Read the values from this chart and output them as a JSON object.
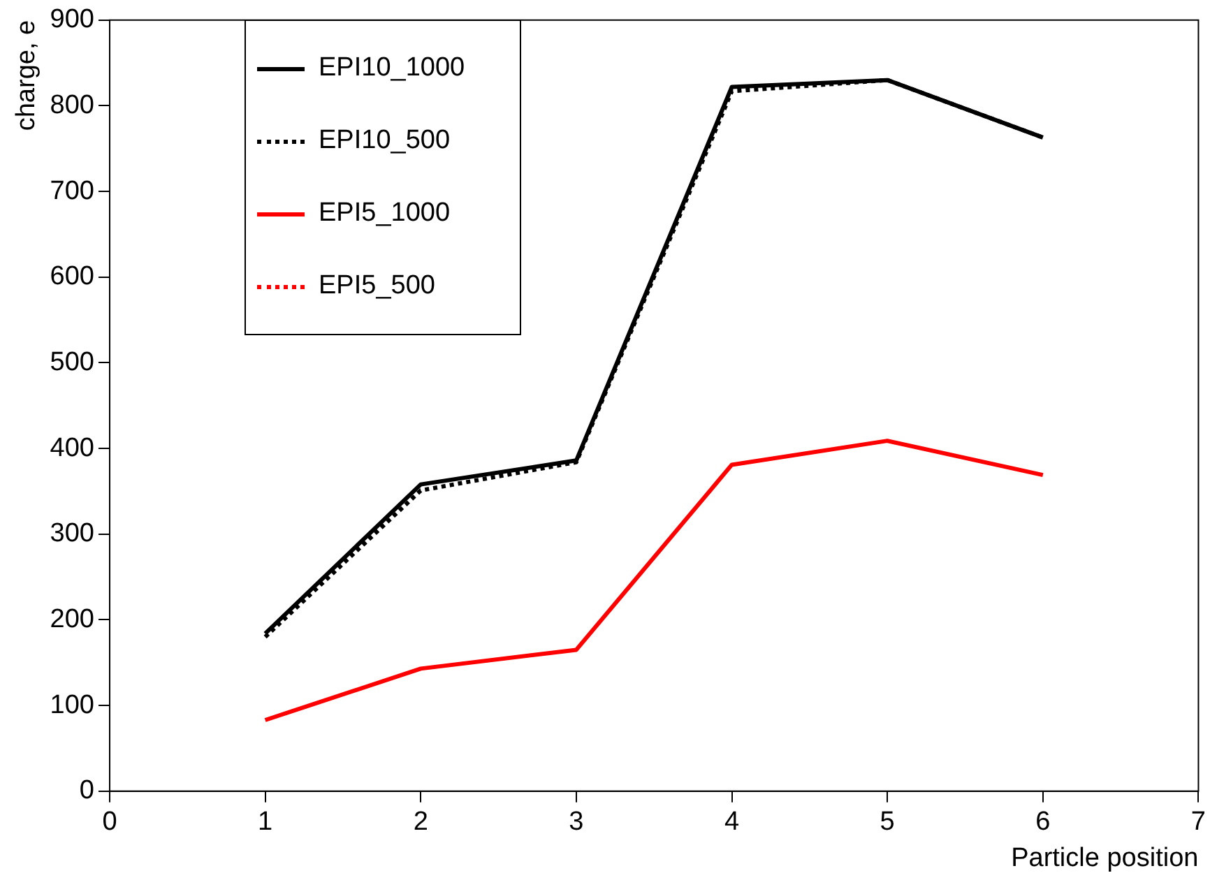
{
  "chart_data": {
    "type": "line",
    "xlabel": "Particle position",
    "ylabel": "charge, e",
    "x": [
      1,
      2,
      3,
      4,
      5,
      6
    ],
    "xlim": [
      0,
      7
    ],
    "xticks": [
      0,
      1,
      2,
      3,
      4,
      5,
      6,
      7
    ],
    "ylim": [
      0,
      900
    ],
    "yticks": [
      0,
      100,
      200,
      300,
      400,
      500,
      600,
      700,
      800,
      900
    ],
    "grid": false,
    "legend": "top left",
    "marker": "none",
    "series": [
      {
        "name": "EPI10_1000",
        "color": "#000000",
        "line_style": "solid",
        "values": [
          184,
          358,
          386,
          822,
          830,
          763
        ]
      },
      {
        "name": "EPI10_500",
        "color": "#000000",
        "line_style": "dotted",
        "values": [
          180,
          351,
          384,
          817,
          830,
          763
        ]
      },
      {
        "name": "EPI5_1000",
        "color": "#ff0000",
        "line_style": "solid",
        "values": [
          83,
          143,
          165,
          381,
          409,
          369
        ]
      },
      {
        "name": "EPI5_500",
        "color": "#ff0000",
        "line_style": "dotted",
        "values": [
          null,
          null,
          null,
          null,
          null,
          null
        ]
      }
    ]
  }
}
